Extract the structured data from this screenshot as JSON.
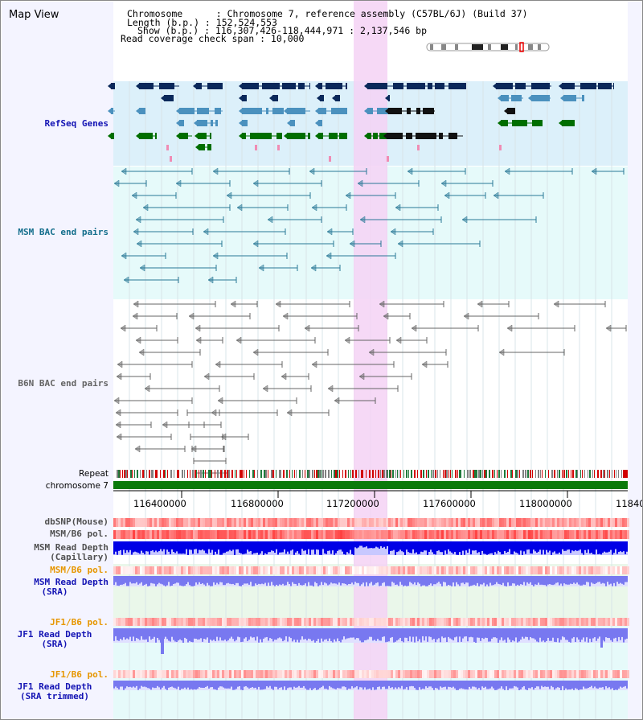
{
  "view": {
    "title": "Map View",
    "info_lines": [
      "Chromosome      : Chromosome 7, reference assembly (C57BL/6J) (Build 37)",
      "Length (b.p.) : 152,524,553",
      "Show (b.p.) : 116,307,426-118,444,971 : 2,137,546 bp",
      "Read coverage check span : 10,000"
    ]
  },
  "tracks": {
    "refseq": "RefSeq Genes",
    "msm_bac": "MSM BAC end pairs",
    "b6n_bac": "B6N BAC end pairs",
    "repeat": "Repeat",
    "chromosome": "chromosome 7",
    "dbsnp": "dbSNP(Mouse)",
    "msm_b6_pol_1": "MSM/B6 pol.",
    "msm_depth_cap_1": "MSM Read Depth",
    "msm_depth_cap_2": "(Capillary)",
    "msm_b6_pol_2": "MSM/B6 pol.",
    "msm_depth_sra_1": "MSM Read Depth",
    "msm_depth_sra_2": "(SRA)",
    "jf1_b6_pol_1": "JF1/B6 pol.",
    "jf1_depth_sra_1": "JF1 Read Depth",
    "jf1_depth_sra_2": "(SRA)",
    "jf1_b6_pol_2": "JF1/B6 pol.",
    "jf1_depth_trim_1": "JF1 Read Depth",
    "jf1_depth_trim_2": "(SRA trimmed)"
  },
  "scale": {
    "ticks": [
      "116400000",
      "116800000",
      "117200000",
      "117600000",
      "118000000",
      "11840"
    ]
  },
  "colors": {
    "refseq_bg": "#dcf0fa",
    "bac_bg": "#e6fafa",
    "highlight": "#f5d2f5",
    "gene_dark": "#0a285a",
    "gene_mid": "#4b91be",
    "gene_green": "#006e00",
    "msm_bac": "#287896",
    "b6n_bac": "#646464",
    "depth_blue": "#0000e6",
    "depth_light": "#7878f0",
    "label_blue": "#1414b4",
    "label_teal": "#146e8c",
    "label_orange": "#e69600",
    "label_gray": "#505050"
  }
}
